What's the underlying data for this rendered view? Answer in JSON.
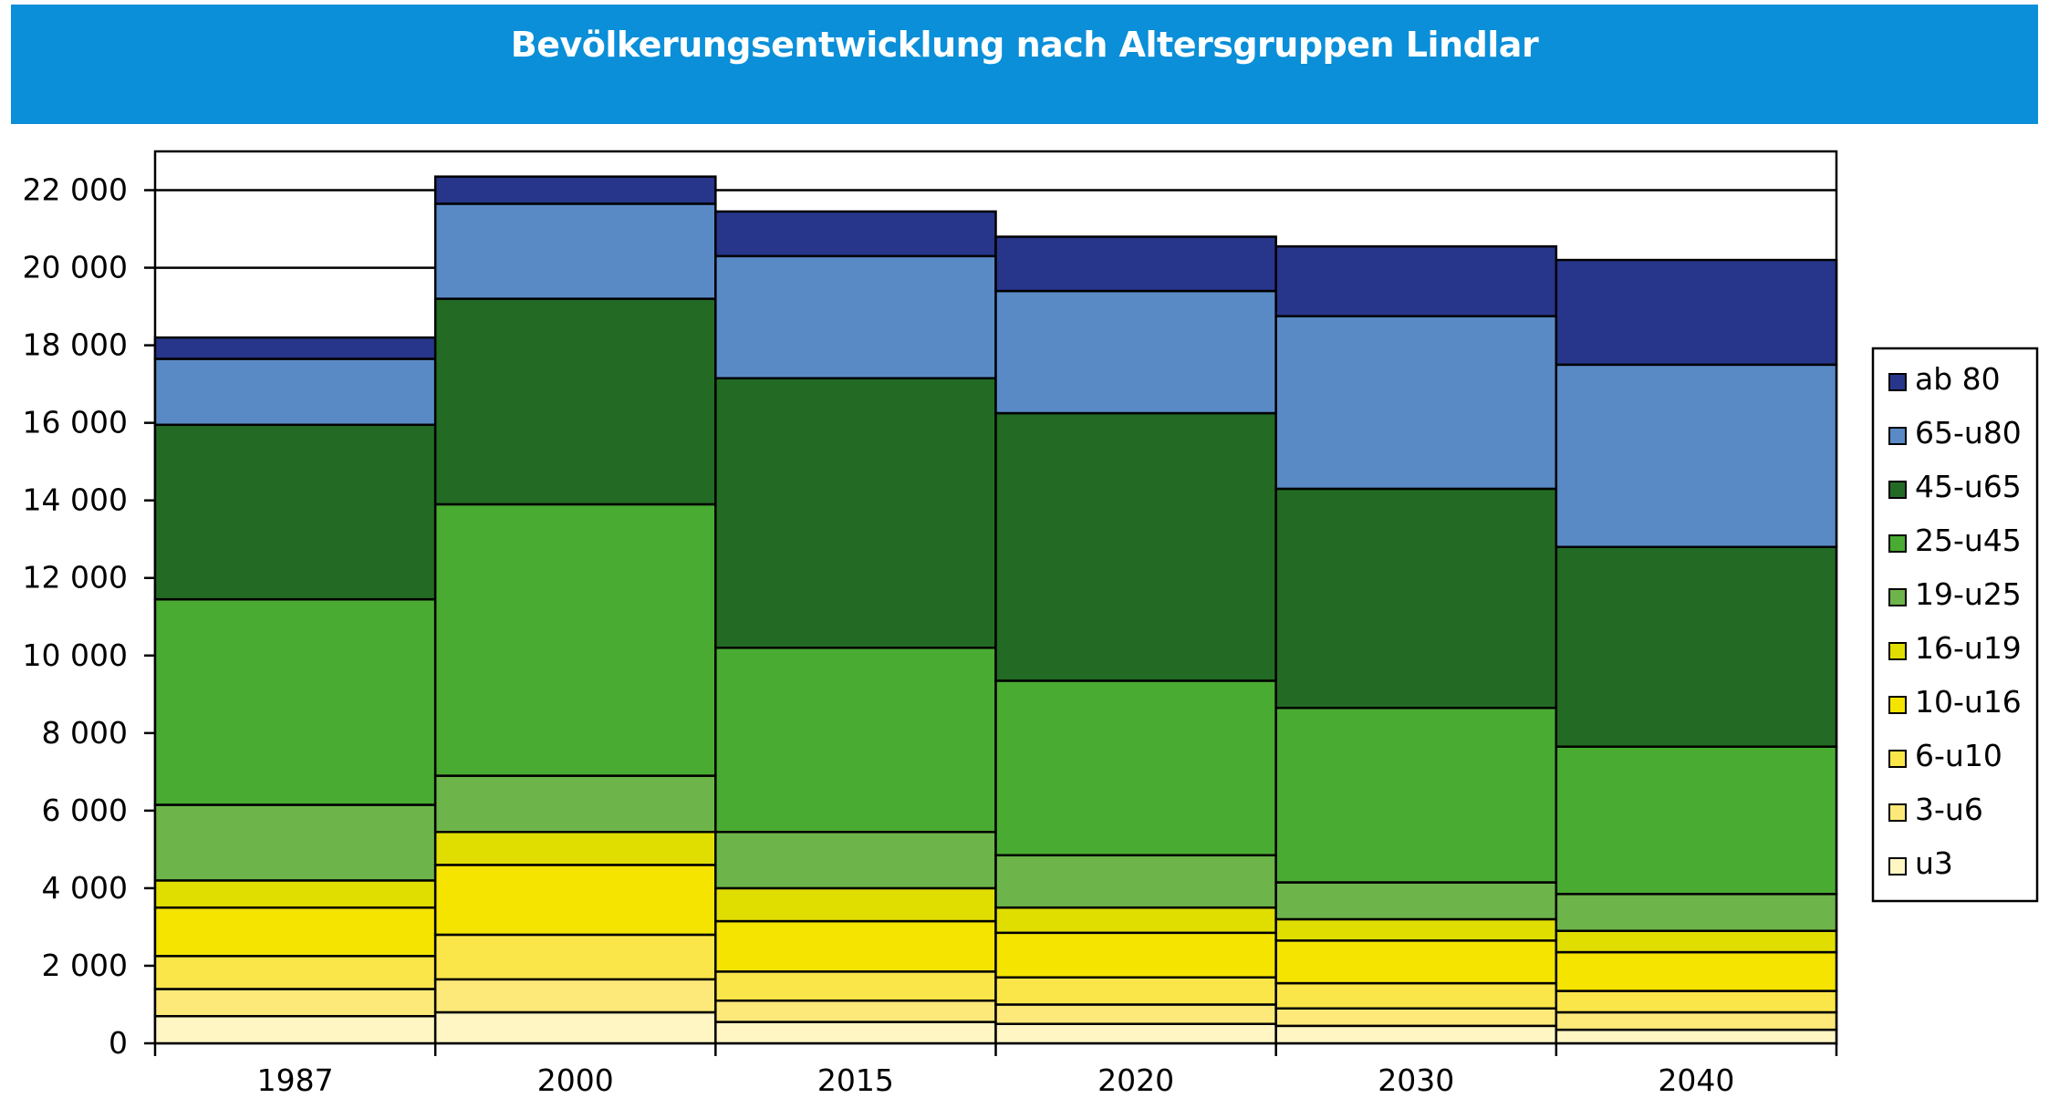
{
  "chart_data": {
    "type": "bar",
    "stacked": true,
    "title": "Bevölkerungsentwicklung nach Altersgruppen Lindlar",
    "xlabel": "",
    "ylabel": "",
    "categories": [
      "1987",
      "2000",
      "2015",
      "2020",
      "2030",
      "2040"
    ],
    "ylim": [
      0,
      23000
    ],
    "yticks": [
      0,
      2000,
      4000,
      6000,
      8000,
      10000,
      12000,
      14000,
      16000,
      18000,
      20000,
      22000
    ],
    "ytick_labels": [
      "0",
      "2 000",
      "4 000",
      "6 000",
      "8 000",
      "10 000",
      "12 000",
      "14 000",
      "16 000",
      "18 000",
      "20 000",
      "22 000"
    ],
    "grid": "horizontal",
    "legend_position": "right",
    "series": [
      {
        "name": "u3",
        "color": "#fff6c4",
        "values": [
          700,
          800,
          550,
          500,
          450,
          350
        ]
      },
      {
        "name": "3-u6",
        "color": "#fde97a",
        "values": [
          700,
          850,
          550,
          500,
          450,
          450
        ]
      },
      {
        "name": "6-u10",
        "color": "#fbe64a",
        "values": [
          850,
          1150,
          750,
          700,
          650,
          550
        ]
      },
      {
        "name": "10-u16",
        "color": "#f4e400",
        "values": [
          1250,
          1800,
          1300,
          1150,
          1100,
          1000
        ]
      },
      {
        "name": "16-u19",
        "color": "#e0de00",
        "values": [
          700,
          850,
          850,
          650,
          550,
          550
        ]
      },
      {
        "name": "19-u25",
        "color": "#6db54a",
        "values": [
          1950,
          1450,
          1450,
          1350,
          950,
          950
        ]
      },
      {
        "name": "25-u45",
        "color": "#4aab32",
        "values": [
          5300,
          7000,
          4750,
          4500,
          4500,
          3800
        ]
      },
      {
        "name": "45-u65",
        "color": "#236b24",
        "values": [
          4500,
          5300,
          6950,
          6900,
          5650,
          5150
        ]
      },
      {
        "name": "65-u80",
        "color": "#5a8ac6",
        "values": [
          1700,
          2450,
          3150,
          3150,
          4450,
          4700
        ]
      },
      {
        "name": "ab 80",
        "color": "#27368a",
        "values": [
          550,
          700,
          1150,
          1400,
          1800,
          2700
        ]
      }
    ]
  }
}
